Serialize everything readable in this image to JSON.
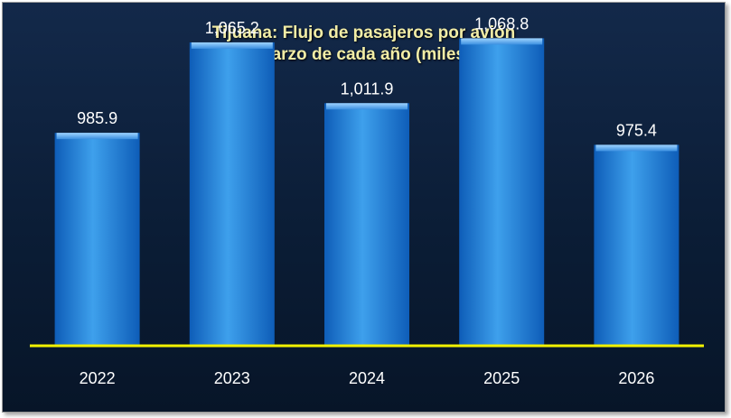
{
  "chart_data": {
    "type": "bar",
    "title_lines": [
      "Tijuana: Flujo de pasajeros por avión",
      "marzo de cada año (miles)"
    ],
    "categories": [
      "2022",
      "2023",
      "2024",
      "2025",
      "2026"
    ],
    "values": [
      985.9,
      1065.2,
      1011.9,
      1068.8,
      975.4
    ],
    "value_labels": [
      "985.9",
      "1,065.2",
      "1,011.9",
      "1,068.8",
      "975.4"
    ],
    "ylim": [
      800,
      1100
    ],
    "grid": false,
    "legend": "none",
    "colors": {
      "bar_light": "#3ea0ec",
      "bar_dark": "#0e5db8",
      "axis_line": "#f2f200",
      "label_text": "#ffffff",
      "title_text": "#f2eda6"
    }
  }
}
